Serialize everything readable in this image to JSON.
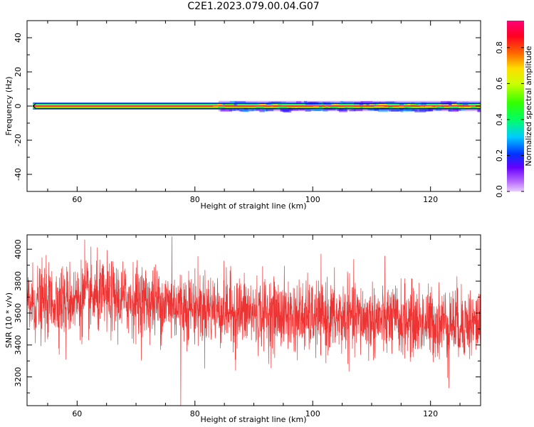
{
  "title": "C2E1.2023.079.00.04.G07",
  "chart_data": [
    {
      "type": "heatmap",
      "title": "C2E1.2023.079.00.04.G07",
      "xlabel": "Height of straight line (km)",
      "ylabel": "Frequency (Hz)",
      "xlim": [
        51.5,
        128.5
      ],
      "ylim": [
        -50,
        50
      ],
      "x_ticks": [
        60,
        80,
        100,
        120
      ],
      "y_ticks": [
        -40,
        -20,
        0,
        20,
        40
      ],
      "x_tick_labels": [
        "60",
        "80",
        "100",
        "120"
      ],
      "y_tick_labels": [
        "-40",
        "-20",
        "0",
        "20",
        "40"
      ],
      "data_x_start": 52.5,
      "data_x_end": 128.5,
      "colorbar": {
        "label": "Normalized spectral amplitude",
        "range": [
          0.0,
          0.95
        ],
        "ticks": [
          0.0,
          0.2,
          0.4,
          0.6,
          0.8
        ],
        "tick_labels": [
          "0.0",
          "0.2",
          "0.4",
          "0.6",
          "0.8"
        ],
        "colormap": "gist_rainbow_r"
      },
      "bands": [
        {
          "half_width_hz": 3.0,
          "amplitude": 0.08
        },
        {
          "half_width_hz": 2.0,
          "amplitude": 0.22
        },
        {
          "half_width_hz": 1.4,
          "amplitude": 0.42
        },
        {
          "half_width_hz": 0.8,
          "amplitude": 0.62
        },
        {
          "half_width_hz": 0.35,
          "amplitude": 0.92
        }
      ],
      "grid": false
    },
    {
      "type": "line",
      "xlabel": "Height of straight line (km)",
      "ylabel": "SNR (10 * v/v)",
      "xlim": [
        51.5,
        128.5
      ],
      "ylim": [
        3020,
        4090
      ],
      "x_ticks": [
        60,
        80,
        100,
        120
      ],
      "y_ticks": [
        3200,
        3400,
        3600,
        3800,
        4000
      ],
      "x_tick_labels": [
        "60",
        "80",
        "100",
        "120"
      ],
      "y_tick_labels": [
        "3200",
        "3400",
        "3600",
        "3800",
        "4000"
      ],
      "color": "#ee3333",
      "grid": false,
      "series": [
        {
          "x": [
            51.5,
            55,
            60,
            65,
            70,
            75,
            80,
            85,
            90,
            95,
            100,
            105,
            110,
            115,
            120,
            125,
            128.5
          ],
          "values": [
            3660,
            3670,
            3690,
            3700,
            3680,
            3660,
            3640,
            3620,
            3600,
            3590,
            3570,
            3570,
            3560,
            3550,
            3540,
            3540,
            3530
          ],
          "noise_amplitude": 150,
          "samples": 2400,
          "spikes": [
            {
              "x": 76.1,
              "y": 4080
            },
            {
              "x": 77.6,
              "y": 3020
            },
            {
              "x": 61.3,
              "y": 4060
            },
            {
              "x": 58.1,
              "y": 3310
            },
            {
              "x": 123.1,
              "y": 3130
            },
            {
              "x": 86.9,
              "y": 3240
            },
            {
              "x": 105.9,
              "y": 3860
            }
          ]
        }
      ]
    }
  ]
}
